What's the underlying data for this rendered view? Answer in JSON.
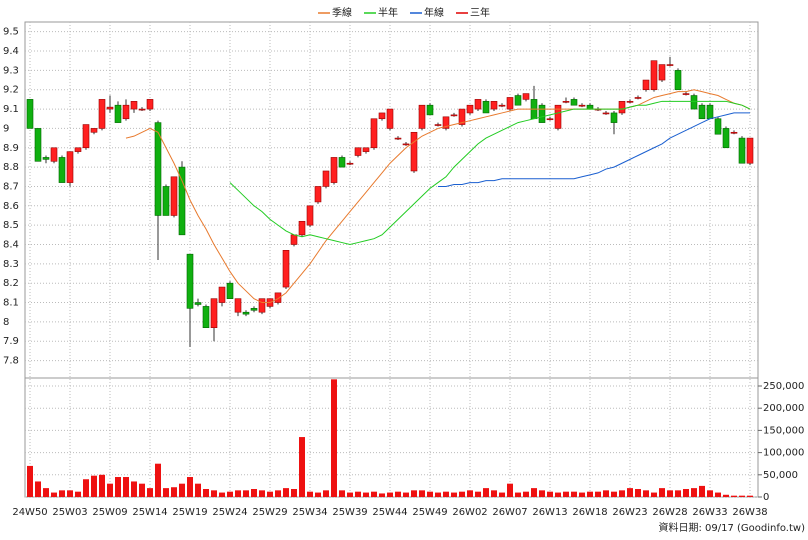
{
  "chart_data": {
    "type": "candlestick",
    "footer": "資料日期: 09/17 (Goodinfo.tw)",
    "categories": [
      "24W50",
      null,
      null,
      null,
      null,
      "25W03",
      null,
      null,
      null,
      null,
      "25W09",
      null,
      null,
      null,
      null,
      "25W14",
      null,
      null,
      null,
      null,
      "25W19",
      null,
      null,
      null,
      null,
      "25W24",
      null,
      null,
      null,
      null,
      "25W29",
      null,
      null,
      null,
      null,
      "25W34",
      null,
      null,
      null,
      null,
      "25W39",
      null,
      null,
      null,
      null,
      "25W44",
      null,
      null,
      null,
      null,
      "25W49",
      null,
      null,
      null,
      null,
      "26W02",
      null,
      null,
      null,
      null,
      "26W07",
      null,
      null,
      null,
      null,
      "26W13",
      null,
      null,
      null,
      null,
      "26W18",
      null,
      null,
      null,
      null,
      "26W23",
      null,
      null,
      null,
      null,
      "26W28",
      null,
      null,
      null,
      null,
      "26W33",
      null,
      null,
      null,
      null,
      "26W38"
    ],
    "ohlc": [
      [
        9.15,
        9.15,
        9.0,
        9.0
      ],
      [
        9.0,
        9.0,
        8.83,
        8.83
      ],
      [
        8.85,
        8.86,
        8.82,
        8.84
      ],
      [
        8.83,
        8.9,
        8.82,
        8.9
      ],
      [
        8.85,
        8.86,
        8.72,
        8.72
      ],
      [
        8.72,
        8.88,
        8.7,
        8.88
      ],
      [
        8.88,
        8.9,
        8.87,
        8.9
      ],
      [
        8.9,
        9.02,
        8.89,
        9.02
      ],
      [
        8.98,
        9.0,
        8.97,
        9.0
      ],
      [
        9.0,
        9.15,
        8.99,
        9.15
      ],
      [
        9.1,
        9.17,
        9.08,
        9.11
      ],
      [
        9.12,
        9.14,
        9.03,
        9.03
      ],
      [
        9.05,
        9.15,
        9.04,
        9.12
      ],
      [
        9.1,
        9.14,
        9.08,
        9.14
      ],
      [
        9.1,
        9.11,
        9.09,
        9.1
      ],
      [
        9.1,
        9.15,
        9.09,
        9.15
      ],
      [
        9.03,
        9.04,
        8.32,
        8.55
      ],
      [
        8.7,
        8.71,
        8.55,
        8.55
      ],
      [
        8.55,
        8.75,
        8.54,
        8.75
      ],
      [
        8.8,
        8.83,
        8.45,
        8.45
      ],
      [
        8.35,
        8.35,
        7.87,
        8.07
      ],
      [
        8.1,
        8.12,
        8.08,
        8.09
      ],
      [
        8.08,
        8.09,
        7.97,
        7.97
      ],
      [
        7.97,
        8.12,
        7.9,
        8.12
      ],
      [
        8.1,
        8.18,
        8.08,
        8.18
      ],
      [
        8.2,
        8.21,
        8.12,
        8.12
      ],
      [
        8.05,
        8.12,
        8.03,
        8.12
      ],
      [
        8.05,
        8.06,
        8.03,
        8.04
      ],
      [
        8.07,
        8.08,
        8.05,
        8.06
      ],
      [
        8.05,
        8.12,
        8.04,
        8.12
      ],
      [
        8.08,
        8.12,
        8.07,
        8.12
      ],
      [
        8.1,
        8.15,
        8.09,
        8.15
      ],
      [
        8.18,
        8.37,
        8.17,
        8.37
      ],
      [
        8.4,
        8.45,
        8.39,
        8.45
      ],
      [
        8.45,
        8.52,
        8.44,
        8.52
      ],
      [
        8.5,
        8.6,
        8.49,
        8.6
      ],
      [
        8.62,
        8.7,
        8.61,
        8.7
      ],
      [
        8.7,
        8.78,
        8.69,
        8.78
      ],
      [
        8.72,
        8.85,
        8.71,
        8.85
      ],
      [
        8.85,
        8.86,
        8.8,
        8.8
      ],
      [
        8.82,
        8.83,
        8.81,
        8.82
      ],
      [
        8.86,
        8.9,
        8.85,
        8.9
      ],
      [
        8.88,
        8.9,
        8.87,
        8.9
      ],
      [
        8.9,
        9.05,
        8.89,
        9.05
      ],
      [
        9.05,
        9.08,
        9.04,
        9.08
      ],
      [
        9.0,
        9.1,
        8.99,
        9.1
      ],
      [
        8.95,
        8.96,
        8.94,
        8.95
      ],
      [
        8.92,
        8.93,
        8.91,
        8.92
      ],
      [
        8.78,
        8.98,
        8.77,
        8.98
      ],
      [
        9.0,
        9.12,
        8.99,
        9.12
      ],
      [
        9.12,
        9.13,
        9.07,
        9.07
      ],
      [
        9.02,
        9.03,
        9.01,
        9.02
      ],
      [
        9.0,
        9.06,
        8.99,
        9.06
      ],
      [
        9.07,
        9.08,
        9.06,
        9.07
      ],
      [
        9.02,
        9.1,
        9.01,
        9.1
      ],
      [
        9.08,
        9.12,
        9.07,
        9.12
      ],
      [
        9.1,
        9.15,
        9.09,
        9.15
      ],
      [
        9.14,
        9.15,
        9.08,
        9.08
      ],
      [
        9.1,
        9.14,
        9.09,
        9.14
      ],
      [
        9.12,
        9.13,
        9.11,
        9.12
      ],
      [
        9.1,
        9.16,
        9.09,
        9.16
      ],
      [
        9.17,
        9.18,
        9.12,
        9.12
      ],
      [
        9.15,
        9.18,
        9.14,
        9.18
      ],
      [
        9.15,
        9.22,
        9.05,
        9.05
      ],
      [
        9.12,
        9.13,
        9.03,
        9.03
      ],
      [
        9.05,
        9.06,
        9.04,
        9.05
      ],
      [
        9.0,
        9.12,
        8.99,
        9.12
      ],
      [
        9.14,
        9.16,
        9.13,
        9.14
      ],
      [
        9.15,
        9.16,
        9.12,
        9.12
      ],
      [
        9.12,
        9.13,
        9.11,
        9.12
      ],
      [
        9.12,
        9.13,
        9.1,
        9.1
      ],
      [
        9.1,
        9.11,
        9.09,
        9.1
      ],
      [
        9.08,
        9.09,
        9.07,
        9.08
      ],
      [
        9.08,
        9.09,
        8.97,
        9.03
      ],
      [
        9.08,
        9.14,
        9.07,
        9.14
      ],
      [
        9.14,
        9.15,
        9.13,
        9.14
      ],
      [
        9.16,
        9.17,
        9.15,
        9.16
      ],
      [
        9.2,
        9.25,
        9.19,
        9.25
      ],
      [
        9.2,
        9.35,
        9.19,
        9.35
      ],
      [
        9.25,
        9.33,
        9.24,
        9.33
      ],
      [
        9.33,
        9.37,
        9.32,
        9.33
      ],
      [
        9.3,
        9.31,
        9.2,
        9.2
      ],
      [
        9.18,
        9.19,
        9.17,
        9.18
      ],
      [
        9.17,
        9.18,
        9.1,
        9.1
      ],
      [
        9.12,
        9.13,
        9.05,
        9.05
      ],
      [
        9.12,
        9.13,
        9.05,
        9.05
      ],
      [
        9.05,
        9.06,
        8.97,
        8.97
      ],
      [
        9.0,
        9.01,
        8.9,
        8.9
      ],
      [
        8.98,
        8.99,
        8.97,
        8.98
      ],
      [
        8.95,
        8.96,
        8.82,
        8.82
      ],
      [
        8.82,
        8.95,
        8.81,
        8.95
      ]
    ],
    "series": [
      {
        "name": "季線",
        "color": "#e87a2e",
        "values": [
          null,
          null,
          null,
          null,
          null,
          null,
          null,
          null,
          null,
          null,
          null,
          null,
          8.95,
          8.96,
          8.98,
          9.0,
          8.98,
          8.9,
          8.82,
          8.73,
          8.63,
          8.55,
          8.48,
          8.4,
          8.33,
          8.26,
          8.2,
          8.16,
          8.12,
          8.1,
          8.1,
          8.12,
          8.15,
          8.2,
          8.25,
          8.3,
          8.36,
          8.42,
          8.47,
          8.52,
          8.57,
          8.62,
          8.67,
          8.72,
          8.77,
          8.82,
          8.86,
          8.9,
          8.93,
          8.96,
          8.98,
          9.0,
          9.01,
          9.02,
          9.03,
          9.04,
          9.05,
          9.06,
          9.07,
          9.08,
          9.09,
          9.1,
          9.1,
          9.1,
          9.1,
          9.1,
          9.1,
          9.1,
          9.1,
          9.1,
          9.1,
          9.1,
          9.1,
          9.1,
          9.1,
          9.11,
          9.12,
          9.14,
          9.16,
          9.17,
          9.18,
          9.19,
          9.19,
          9.2,
          9.19,
          9.18,
          9.17,
          9.15,
          9.13,
          9.12,
          9.1
        ]
      },
      {
        "name": "半年",
        "color": "#22cc22",
        "values": [
          null,
          null,
          null,
          null,
          null,
          null,
          null,
          null,
          null,
          null,
          null,
          null,
          null,
          null,
          null,
          null,
          null,
          null,
          null,
          null,
          null,
          null,
          null,
          null,
          null,
          8.72,
          8.68,
          8.64,
          8.6,
          8.57,
          8.53,
          8.5,
          8.47,
          8.45,
          8.44,
          8.45,
          8.44,
          8.43,
          8.42,
          8.41,
          8.4,
          8.41,
          8.42,
          8.43,
          8.45,
          8.49,
          8.53,
          8.57,
          8.61,
          8.65,
          8.69,
          8.72,
          8.75,
          8.8,
          8.84,
          8.88,
          8.92,
          8.95,
          8.97,
          8.99,
          9.01,
          9.03,
          9.04,
          9.05,
          9.06,
          9.07,
          9.08,
          9.09,
          9.1,
          9.1,
          9.1,
          9.1,
          9.1,
          9.1,
          9.1,
          9.11,
          9.12,
          9.12,
          9.13,
          9.14,
          9.14,
          9.14,
          9.14,
          9.14,
          9.14,
          9.14,
          9.14,
          9.14,
          9.13,
          9.12,
          9.1
        ]
      },
      {
        "name": "年線",
        "color": "#1a5fd0",
        "values": [
          null,
          null,
          null,
          null,
          null,
          null,
          null,
          null,
          null,
          null,
          null,
          null,
          null,
          null,
          null,
          null,
          null,
          null,
          null,
          null,
          null,
          null,
          null,
          null,
          null,
          null,
          null,
          null,
          null,
          null,
          null,
          null,
          null,
          null,
          null,
          null,
          null,
          null,
          null,
          null,
          null,
          null,
          null,
          null,
          null,
          null,
          null,
          null,
          null,
          null,
          null,
          8.7,
          8.7,
          8.71,
          8.71,
          8.72,
          8.72,
          8.73,
          8.73,
          8.74,
          8.74,
          8.74,
          8.74,
          8.74,
          8.74,
          8.74,
          8.74,
          8.74,
          8.74,
          8.75,
          8.76,
          8.77,
          8.79,
          8.8,
          8.82,
          8.84,
          8.86,
          8.88,
          8.9,
          8.92,
          8.95,
          8.97,
          8.99,
          9.01,
          9.03,
          9.05,
          9.06,
          9.07,
          9.08,
          9.08,
          9.08
        ]
      },
      {
        "name": "三年",
        "color": "#e00000",
        "values": [
          null,
          null,
          null,
          null,
          null,
          null,
          null,
          null,
          null,
          null,
          null,
          null,
          null,
          null,
          null,
          null,
          null,
          null,
          null,
          null,
          null,
          null,
          null,
          null,
          null,
          null,
          null,
          null,
          null,
          null,
          null,
          null,
          null,
          null,
          null,
          null,
          null,
          null,
          null,
          null,
          null,
          null,
          null,
          null,
          null,
          null,
          null,
          null,
          null,
          null,
          null,
          null,
          null,
          null,
          null,
          null,
          null,
          null,
          null,
          null,
          null,
          null,
          null,
          null,
          null,
          null,
          null,
          null,
          null,
          null,
          null,
          null,
          null,
          null,
          null,
          null,
          null,
          null,
          null,
          null,
          null,
          null,
          null,
          null,
          null,
          null,
          null,
          null,
          null,
          null,
          null
        ]
      }
    ],
    "volume": {
      "color": "#ee1111",
      "values": [
        70000,
        35000,
        20000,
        10000,
        15000,
        15000,
        12000,
        40000,
        48000,
        50000,
        30000,
        45000,
        45000,
        35000,
        30000,
        20000,
        75000,
        20000,
        22000,
        30000,
        45000,
        30000,
        18000,
        15000,
        10000,
        12000,
        15000,
        15000,
        18000,
        15000,
        12000,
        15000,
        20000,
        18000,
        135000,
        12000,
        10000,
        15000,
        265000,
        15000,
        10000,
        12000,
        10000,
        12000,
        8000,
        10000,
        12000,
        10000,
        15000,
        15000,
        12000,
        10000,
        12000,
        10000,
        12000,
        15000,
        12000,
        20000,
        15000,
        10000,
        30000,
        10000,
        12000,
        20000,
        15000,
        12000,
        10000,
        12000,
        12000,
        10000,
        12000,
        12000,
        15000,
        12000,
        15000,
        20000,
        18000,
        15000,
        10000,
        20000,
        15000,
        15000,
        18000,
        20000,
        25000,
        15000,
        10000,
        5000,
        3000,
        3000,
        3000
      ]
    },
    "ylim": [
      7.71,
      9.55
    ],
    "yticks": [
      7.8,
      7.9,
      8,
      8.1,
      8.2,
      8.3,
      8.4,
      8.5,
      8.6,
      8.7,
      8.8,
      8.9,
      9,
      9.1,
      9.2,
      9.3,
      9.4,
      9.5
    ],
    "y2lim": [
      0,
      268000
    ],
    "y2ticks": [
      0,
      {
        "value": 50000,
        "label": "50,000"
      },
      {
        "value": 100000,
        "label": "100,000"
      },
      {
        "value": 150000,
        "label": "150,000"
      },
      {
        "value": 200000,
        "label": "200,000"
      },
      {
        "value": 250000,
        "label": "250,000"
      }
    ],
    "up_color": "#ff2020",
    "down_color": "#10b010",
    "grid": true
  }
}
